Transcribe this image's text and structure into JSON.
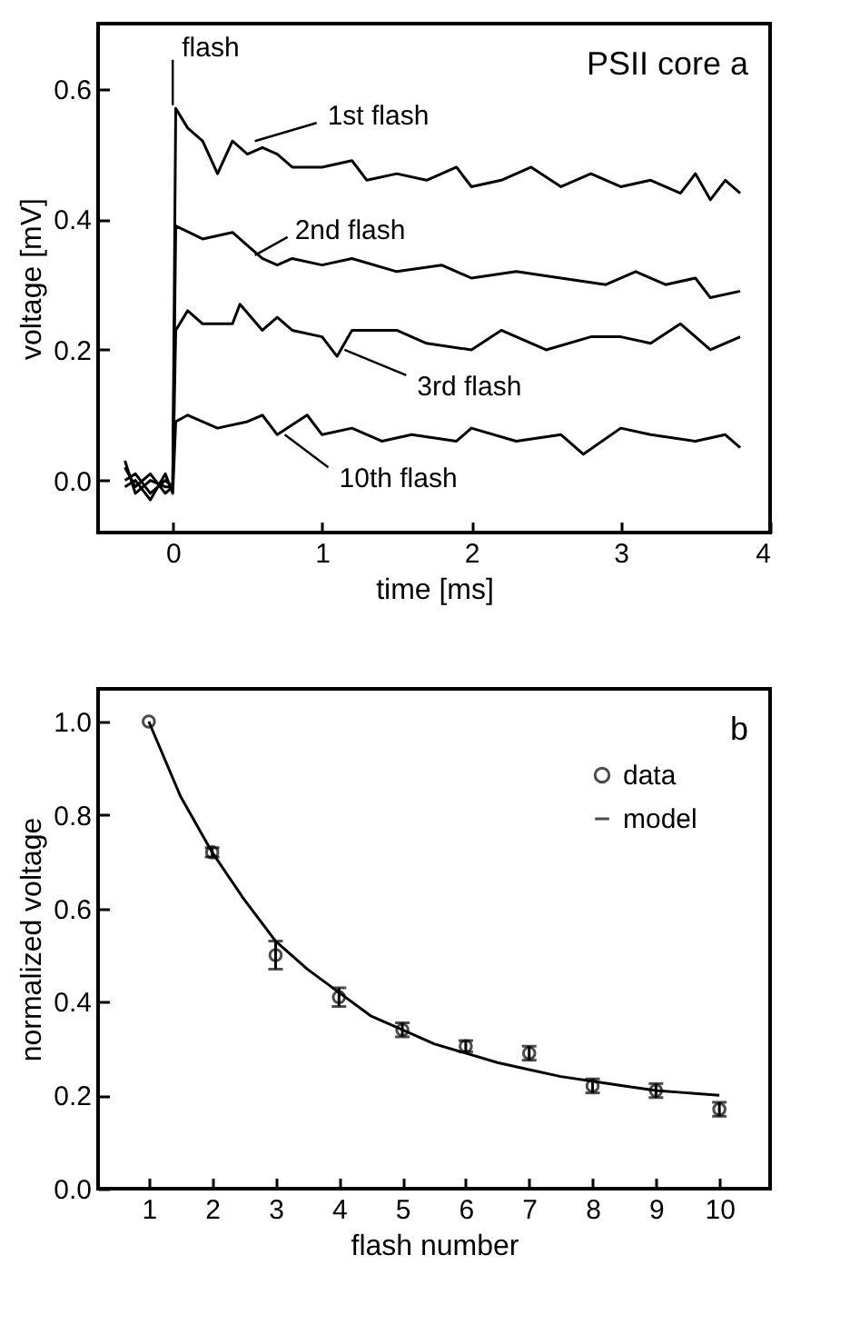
{
  "chart_data": [
    {
      "type": "line",
      "xlabel": "time [ms]",
      "ylabel": "voltage [mV]",
      "xlim": [
        -0.5,
        4
      ],
      "ylim": [
        -0.08,
        0.7
      ],
      "xticks": [
        0,
        1,
        2,
        3,
        4
      ],
      "yticks": [
        {
          "value": 0,
          "label": "0.0"
        },
        {
          "value": 0.2,
          "label": "0.2"
        },
        {
          "value": 0.4,
          "label": "0.4"
        },
        {
          "value": 0.6,
          "label": "0.6"
        }
      ],
      "annotations": [
        {
          "text": "flash",
          "x": 0,
          "y": 0.575
        },
        {
          "text": "1st flash",
          "x": 0.55,
          "y": 0.52
        },
        {
          "text": "2nd flash",
          "x": 0.55,
          "y": 0.345
        },
        {
          "text": "3rd flash",
          "x": 1.15,
          "y": 0.2
        },
        {
          "text": "10th flash",
          "x": 0.75,
          "y": 0.07
        },
        "PSII core",
        "a"
      ],
      "series": [
        {
          "color": "#000000",
          "x": [
            -0.32,
            -0.25,
            -0.15,
            -0.05,
            0,
            0.02,
            0.1,
            0.2,
            0.3,
            0.4,
            0.5,
            0.6,
            0.7,
            0.8,
            1.0,
            1.2,
            1.3,
            1.5,
            1.7,
            1.9,
            2.0,
            2.2,
            2.4,
            2.6,
            2.8,
            3.0,
            3.2,
            3.4,
            3.5,
            3.6,
            3.7,
            3.8
          ],
          "values": [
            0.03,
            -0.02,
            0.0,
            -0.01,
            -0.01,
            0.57,
            0.54,
            0.52,
            0.47,
            0.52,
            0.5,
            0.51,
            0.5,
            0.48,
            0.48,
            0.49,
            0.46,
            0.47,
            0.46,
            0.48,
            0.45,
            0.46,
            0.48,
            0.45,
            0.47,
            0.45,
            0.46,
            0.44,
            0.47,
            0.43,
            0.46,
            0.44
          ]
        },
        {
          "color": "#000000",
          "x": [
            -0.32,
            -0.25,
            -0.15,
            -0.05,
            0,
            0.02,
            0.2,
            0.4,
            0.5,
            0.6,
            0.7,
            0.8,
            1.0,
            1.2,
            1.5,
            1.8,
            2.0,
            2.3,
            2.6,
            2.9,
            3.1,
            3.3,
            3.5,
            3.6,
            3.8
          ],
          "values": [
            0.02,
            -0.01,
            0.01,
            -0.02,
            -0.01,
            0.39,
            0.37,
            0.38,
            0.36,
            0.34,
            0.33,
            0.34,
            0.33,
            0.34,
            0.32,
            0.33,
            0.31,
            0.32,
            0.31,
            0.3,
            0.32,
            0.3,
            0.31,
            0.28,
            0.29
          ]
        },
        {
          "color": "#000000",
          "x": [
            -0.32,
            -0.25,
            -0.15,
            -0.05,
            0,
            0.02,
            0.1,
            0.2,
            0.4,
            0.45,
            0.6,
            0.7,
            0.8,
            1.0,
            1.1,
            1.2,
            1.5,
            1.7,
            2.0,
            2.2,
            2.5,
            2.8,
            3.0,
            3.2,
            3.4,
            3.6,
            3.8
          ],
          "values": [
            0.0,
            0.01,
            -0.02,
            0.0,
            -0.01,
            0.23,
            0.26,
            0.24,
            0.24,
            0.27,
            0.23,
            0.25,
            0.23,
            0.22,
            0.19,
            0.23,
            0.23,
            0.21,
            0.2,
            0.23,
            0.2,
            0.22,
            0.22,
            0.21,
            0.24,
            0.2,
            0.22
          ]
        },
        {
          "color": "#000000",
          "x": [
            -0.32,
            -0.25,
            -0.15,
            -0.05,
            0,
            0.02,
            0.1,
            0.3,
            0.5,
            0.6,
            0.7,
            0.9,
            1.0,
            1.2,
            1.4,
            1.6,
            1.9,
            2.0,
            2.3,
            2.6,
            2.75,
            3.0,
            3.2,
            3.5,
            3.7,
            3.8
          ],
          "values": [
            -0.01,
            0.0,
            -0.03,
            0.01,
            -0.02,
            0.09,
            0.1,
            0.08,
            0.09,
            0.1,
            0.07,
            0.1,
            0.07,
            0.08,
            0.06,
            0.07,
            0.06,
            0.08,
            0.06,
            0.07,
            0.04,
            0.08,
            0.07,
            0.06,
            0.07,
            0.05
          ]
        }
      ]
    },
    {
      "type": "scatter",
      "xlabel": "flash number",
      "ylabel": "normalized voltage",
      "xlim": [
        0.2,
        10.8
      ],
      "ylim": [
        0,
        1.07
      ],
      "xticks": [
        1,
        2,
        3,
        4,
        5,
        6,
        7,
        8,
        9,
        10
      ],
      "yticks": [
        {
          "value": 0,
          "label": "0.0"
        },
        {
          "value": 0.2,
          "label": "0.2"
        },
        {
          "value": 0.4,
          "label": "0.4"
        },
        {
          "value": 0.6,
          "label": "0.6"
        },
        {
          "value": 0.8,
          "label": "0.8"
        },
        {
          "value": 1,
          "label": "1.0"
        }
      ],
      "legend": "top right",
      "annotations": [
        "b"
      ],
      "series": [
        {
          "name": "data",
          "marker": "circle",
          "color": "#000000",
          "x": [
            1,
            2,
            3,
            4,
            5,
            6,
            7,
            8,
            9,
            10
          ],
          "values": [
            1.0,
            0.72,
            0.5,
            0.41,
            0.34,
            0.305,
            0.29,
            0.22,
            0.21,
            0.17
          ],
          "errors": [
            null,
            0.01,
            0.03,
            0.02,
            0.015,
            0.012,
            0.015,
            0.015,
            0.015,
            0.015
          ]
        },
        {
          "name": "model",
          "type": "line",
          "color": "#000000",
          "x": [
            1,
            1.5,
            2,
            2.5,
            3,
            3.5,
            4,
            4.5,
            5,
            5.5,
            6,
            6.5,
            7,
            7.5,
            8,
            8.5,
            9,
            9.5,
            10
          ],
          "values": [
            1.0,
            0.84,
            0.72,
            0.62,
            0.53,
            0.47,
            0.42,
            0.37,
            0.34,
            0.31,
            0.29,
            0.27,
            0.255,
            0.24,
            0.23,
            0.22,
            0.21,
            0.205,
            0.2
          ]
        }
      ]
    }
  ]
}
